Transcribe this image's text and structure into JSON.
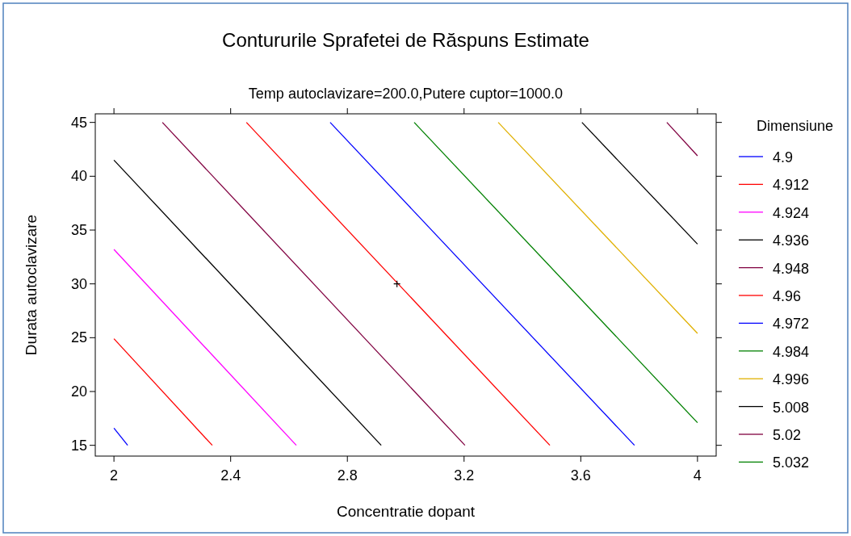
{
  "chart_data": {
    "type": "line",
    "title": "Contururile Sprafetei de Răspuns Estimate",
    "subtitle": "Temp autoclavizare=200.0,Putere cuptor=1000.0",
    "xlabel": "Concentratie dopant",
    "ylabel": "Durata autoclavizare",
    "legend_title": "Dimensiune",
    "legend": "right",
    "grid": false,
    "xlim": [
      1.936,
      4.064
    ],
    "ylim": [
      14.0,
      45.8
    ],
    "xticks": [
      2,
      2.4,
      2.8,
      3.2,
      3.6,
      4
    ],
    "yticks": [
      15,
      20,
      25,
      30,
      35,
      40,
      45
    ],
    "series": [
      {
        "name": "4.9",
        "color": "#0000ff",
        "x": [
          2,
          2.047
        ],
        "values": [
          16.6,
          15
        ]
      },
      {
        "name": "4.912",
        "color": "#ff0000",
        "x": [
          2,
          2.337
        ],
        "values": [
          24.9,
          15
        ]
      },
      {
        "name": "4.924",
        "color": "#ff00ff",
        "x": [
          2,
          2.625
        ],
        "values": [
          33.2,
          15
        ]
      },
      {
        "name": "4.936",
        "color": "#000000",
        "x": [
          2,
          2.916
        ],
        "values": [
          41.5,
          15
        ]
      },
      {
        "name": "4.948",
        "color": "#800040",
        "x": [
          2.166,
          3.203
        ],
        "values": [
          45,
          15
        ]
      },
      {
        "name": "4.96",
        "color": "#ff0000",
        "x": [
          2.454,
          3.494
        ],
        "values": [
          45,
          15
        ]
      },
      {
        "name": "4.972",
        "color": "#0000ff",
        "x": [
          2.741,
          3.784
        ],
        "values": [
          45,
          15
        ]
      },
      {
        "name": "4.984",
        "color": "#008000",
        "x": [
          3.029,
          4
        ],
        "values": [
          45,
          17.1
        ]
      },
      {
        "name": "4.996",
        "color": "#e0b000",
        "x": [
          3.317,
          4
        ],
        "values": [
          45,
          25.4
        ]
      },
      {
        "name": "5.008",
        "color": "#000000",
        "x": [
          3.604,
          4
        ],
        "values": [
          45,
          33.7
        ]
      },
      {
        "name": "5.02",
        "color": "#800040",
        "x": [
          3.895,
          4
        ],
        "values": [
          45,
          41.9
        ]
      },
      {
        "name": "5.032",
        "color": "#008000"
      },
      {
        "type": "scatter",
        "color": "#000000",
        "x": [
          2.97
        ],
        "values": [
          30
        ],
        "marker": "cross"
      }
    ]
  }
}
